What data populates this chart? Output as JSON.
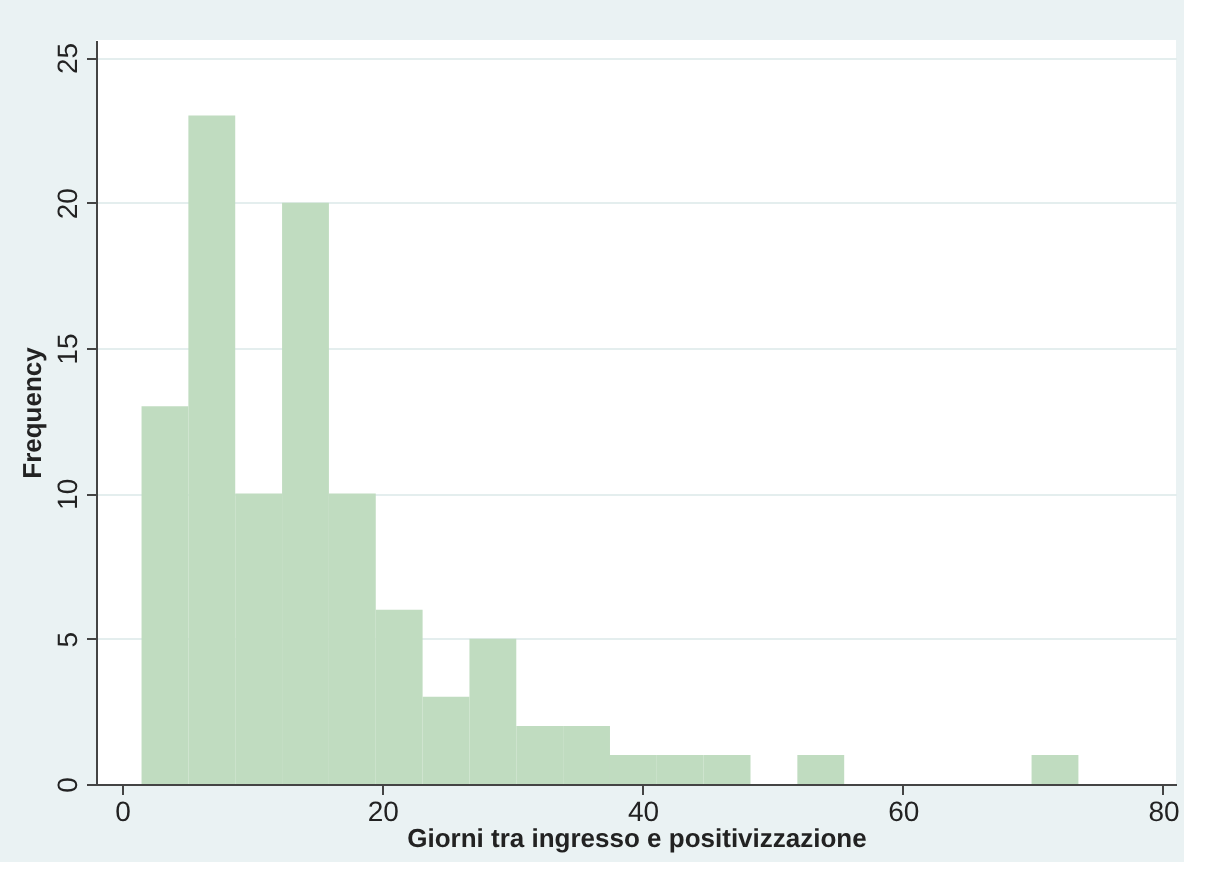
{
  "chart_data": {
    "type": "histogram",
    "xlabel": "Giorni tra ingresso e positivizzazione",
    "ylabel": "Frequency",
    "bins": [
      1.5,
      5.1,
      8.7,
      12.3,
      15.9,
      19.5,
      23.1,
      26.7,
      30.3,
      33.9,
      37.5,
      41.1,
      44.7,
      48.3,
      51.9,
      55.5,
      59.1,
      62.7,
      66.3,
      69.9,
      73.5
    ],
    "values": [
      13,
      23,
      10,
      20,
      10,
      6,
      3,
      5,
      2,
      2,
      1,
      1,
      1,
      0,
      1,
      0,
      0,
      0,
      0,
      1
    ],
    "color": "#c0dcc0",
    "xlim": [
      -2,
      81
    ],
    "xticks": [
      0,
      20,
      40,
      60,
      80
    ],
    "ylim": [
      0,
      25.6
    ],
    "yticks": [
      0,
      5,
      10,
      15,
      20,
      25
    ],
    "grid": "y"
  }
}
